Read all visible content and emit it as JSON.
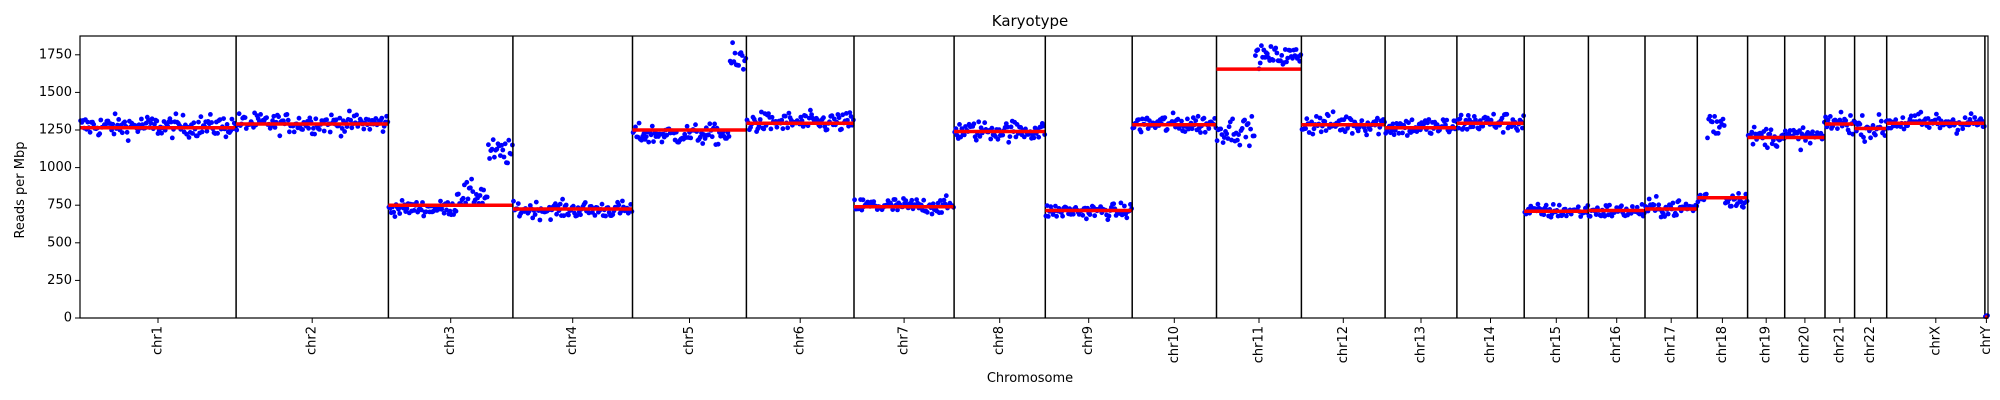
{
  "chart_data": {
    "type": "scatter",
    "title": "Karyotype",
    "xlabel": "Chromosome",
    "ylabel": "Reads per Mbp",
    "ylim": [
      0,
      1875
    ],
    "yticks": [
      0,
      250,
      500,
      750,
      1000,
      1250,
      1500,
      1750
    ],
    "grid": false,
    "legend": "none",
    "colors": {
      "points": "#0000ff",
      "median": "#ff0000",
      "separator": "#000000"
    },
    "chromosomes": [
      {
        "name": "chr1",
        "length_mbp": 248,
        "median": 1265,
        "segments": [
          {
            "from": 0,
            "to": 1,
            "level": 1275,
            "spread": 60
          }
        ]
      },
      {
        "name": "chr2",
        "length_mbp": 242,
        "median": 1290,
        "segments": [
          {
            "from": 0,
            "to": 1,
            "level": 1295,
            "spread": 55
          }
        ]
      },
      {
        "name": "chr3",
        "length_mbp": 198,
        "median": 750,
        "segments": [
          {
            "from": 0,
            "to": 0.55,
            "level": 730,
            "spread": 40
          },
          {
            "from": 0.55,
            "to": 0.8,
            "level": 820,
            "spread": 70
          },
          {
            "from": 0.8,
            "to": 1,
            "level": 1100,
            "spread": 70
          }
        ]
      },
      {
        "name": "chr4",
        "length_mbp": 190,
        "median": 725,
        "segments": [
          {
            "from": 0,
            "to": 1,
            "level": 720,
            "spread": 45
          }
        ]
      },
      {
        "name": "chr5",
        "length_mbp": 181,
        "median": 1250,
        "segments": [
          {
            "from": 0,
            "to": 0.85,
            "level": 1220,
            "spread": 55
          },
          {
            "from": 0.85,
            "to": 1,
            "level": 1700,
            "spread": 100
          }
        ]
      },
      {
        "name": "chr6",
        "length_mbp": 171,
        "median": 1295,
        "segments": [
          {
            "from": 0,
            "to": 1,
            "level": 1300,
            "spread": 55
          }
        ]
      },
      {
        "name": "chr7",
        "length_mbp": 159,
        "median": 740,
        "segments": [
          {
            "from": 0,
            "to": 1,
            "level": 745,
            "spread": 45
          }
        ]
      },
      {
        "name": "chr8",
        "length_mbp": 145,
        "median": 1240,
        "segments": [
          {
            "from": 0,
            "to": 1,
            "level": 1245,
            "spread": 55
          }
        ]
      },
      {
        "name": "chr9",
        "length_mbp": 138,
        "median": 715,
        "segments": [
          {
            "from": 0,
            "to": 1,
            "level": 710,
            "spread": 40
          }
        ]
      },
      {
        "name": "chr10",
        "length_mbp": 134,
        "median": 1285,
        "segments": [
          {
            "from": 0,
            "to": 1,
            "level": 1290,
            "spread": 55
          }
        ]
      },
      {
        "name": "chr11",
        "length_mbp": 135,
        "median": 1655,
        "segments": [
          {
            "from": 0,
            "to": 0.45,
            "level": 1250,
            "spread": 70
          },
          {
            "from": 0.45,
            "to": 1,
            "level": 1740,
            "spread": 55
          }
        ]
      },
      {
        "name": "chr12",
        "length_mbp": 133,
        "median": 1285,
        "segments": [
          {
            "from": 0,
            "to": 1,
            "level": 1290,
            "spread": 60
          }
        ]
      },
      {
        "name": "chr13",
        "length_mbp": 114,
        "median": 1265,
        "segments": [
          {
            "from": 0,
            "to": 1,
            "level": 1270,
            "spread": 55
          }
        ]
      },
      {
        "name": "chr14",
        "length_mbp": 107,
        "median": 1295,
        "segments": [
          {
            "from": 0,
            "to": 1,
            "level": 1300,
            "spread": 55
          }
        ]
      },
      {
        "name": "chr15",
        "length_mbp": 102,
        "median": 710,
        "segments": [
          {
            "from": 0,
            "to": 1,
            "level": 710,
            "spread": 40
          }
        ]
      },
      {
        "name": "chr16",
        "length_mbp": 90,
        "median": 715,
        "segments": [
          {
            "from": 0,
            "to": 1,
            "level": 710,
            "spread": 40
          }
        ]
      },
      {
        "name": "chr17",
        "length_mbp": 83,
        "median": 725,
        "segments": [
          {
            "from": 0,
            "to": 1,
            "level": 730,
            "spread": 50
          }
        ]
      },
      {
        "name": "chr18",
        "length_mbp": 80,
        "median": 800,
        "segments": [
          {
            "from": 0,
            "to": 0.2,
            "level": 800,
            "spread": 40
          },
          {
            "from": 0.2,
            "to": 0.55,
            "level": 1300,
            "spread": 100
          },
          {
            "from": 0.55,
            "to": 1,
            "level": 790,
            "spread": 45
          }
        ]
      },
      {
        "name": "chr19",
        "length_mbp": 59,
        "median": 1200,
        "segments": [
          {
            "from": 0,
            "to": 1,
            "level": 1205,
            "spread": 55
          }
        ]
      },
      {
        "name": "chr20",
        "length_mbp": 64,
        "median": 1200,
        "segments": [
          {
            "from": 0,
            "to": 1,
            "level": 1205,
            "spread": 55
          }
        ]
      },
      {
        "name": "chr21",
        "length_mbp": 47,
        "median": 1290,
        "segments": [
          {
            "from": 0,
            "to": 1,
            "level": 1300,
            "spread": 60
          }
        ]
      },
      {
        "name": "chr22",
        "length_mbp": 51,
        "median": 1260,
        "segments": [
          {
            "from": 0,
            "to": 1,
            "level": 1265,
            "spread": 60
          }
        ]
      },
      {
        "name": "chrX",
        "length_mbp": 156,
        "median": 1295,
        "segments": [
          {
            "from": 0,
            "to": 1,
            "level": 1300,
            "spread": 55
          }
        ]
      },
      {
        "name": "chrY",
        "length_mbp": 5,
        "median": 5,
        "segments": [
          {
            "from": 0,
            "to": 1,
            "level": 10,
            "spread": 5
          }
        ]
      }
    ]
  }
}
